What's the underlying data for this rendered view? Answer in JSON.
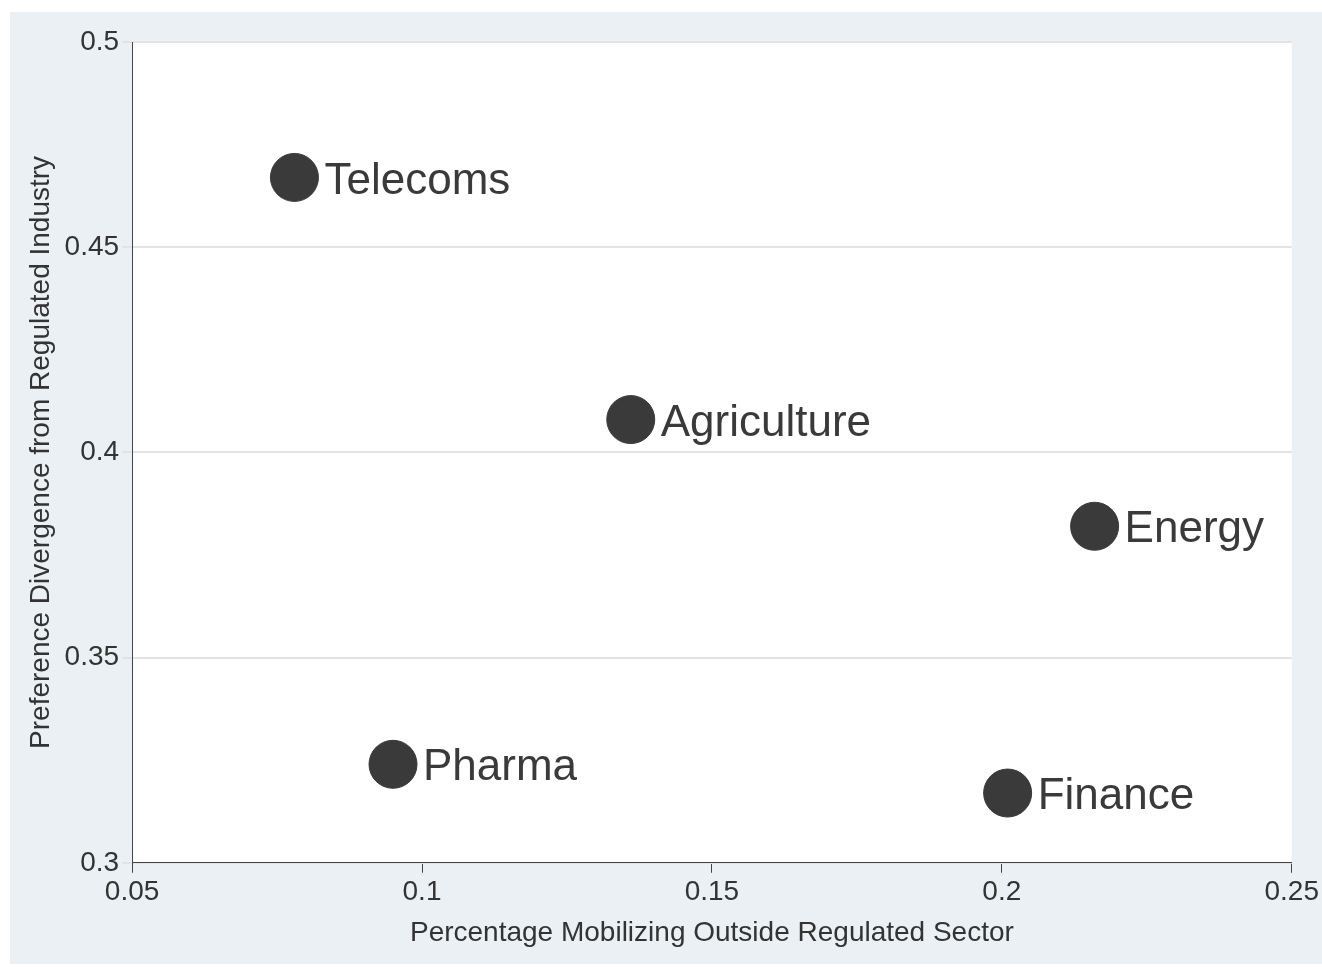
{
  "chart_data": {
    "type": "scatter",
    "xlabel": "Percentage Mobilizing Outside Regulated Sector",
    "ylabel": "Preference Divergence from Regulated Industry",
    "series": [
      {
        "name": "Telecoms",
        "color": "#3a3a3a",
        "x": [
          0.078
        ],
        "values": [
          0.467
        ]
      },
      {
        "name": "Agriculture",
        "color": "#3a3a3a",
        "x": [
          0.136
        ],
        "values": [
          0.408
        ]
      },
      {
        "name": "Energy",
        "color": "#3a3a3a",
        "x": [
          0.216
        ],
        "values": [
          0.382
        ]
      },
      {
        "name": "Pharma",
        "color": "#3a3a3a",
        "x": [
          0.095
        ],
        "values": [
          0.324
        ]
      },
      {
        "name": "Finance",
        "color": "#3a3a3a",
        "x": [
          0.201
        ],
        "values": [
          0.317
        ]
      }
    ],
    "xlim": [
      0.05,
      0.25
    ],
    "xticks": [
      0.05,
      0.1,
      0.15,
      0.2,
      0.25
    ],
    "ylim": [
      0.3,
      0.5
    ],
    "yticks": [
      0.3,
      0.35,
      0.4,
      0.45,
      0.5
    ],
    "grid": "y",
    "legend": false,
    "marker": "circle"
  }
}
